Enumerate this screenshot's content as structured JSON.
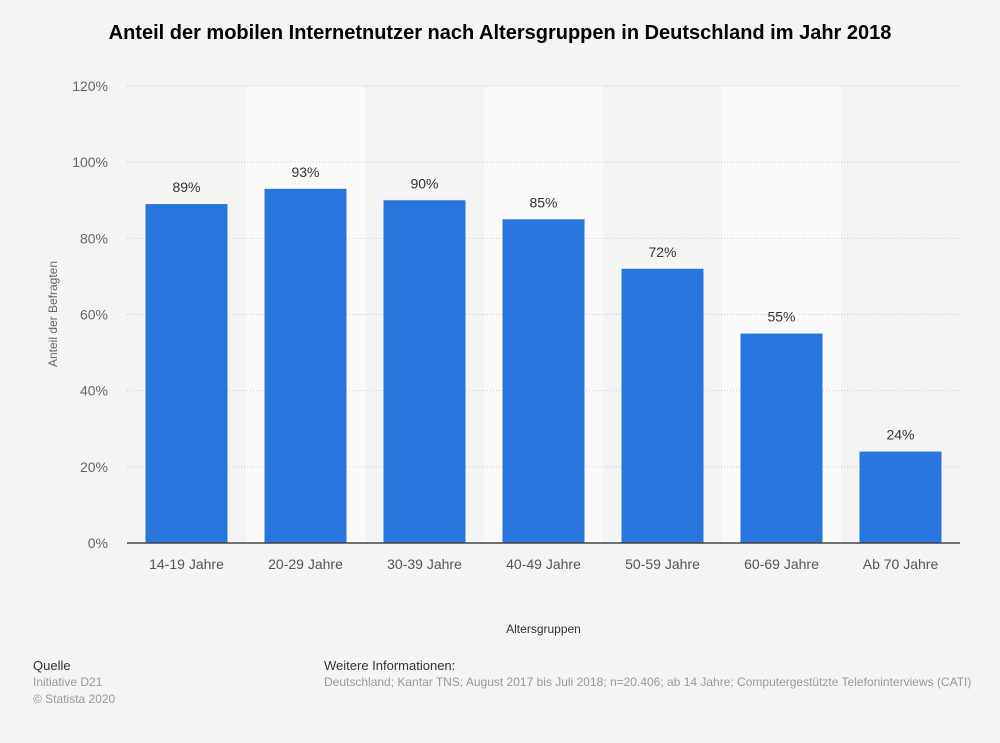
{
  "chart_data": {
    "type": "bar",
    "title": "Anteil der mobilen Internetnutzer nach Altersgruppen in Deutschland im Jahr 2018",
    "xlabel": "Altersgruppen",
    "ylabel": "Anteil der Befragten",
    "categories": [
      "14-19 Jahre",
      "20-29 Jahre",
      "30-39 Jahre",
      "40-49 Jahre",
      "50-59 Jahre",
      "60-69 Jahre",
      "Ab 70 Jahre"
    ],
    "values": [
      89,
      93,
      90,
      85,
      72,
      55,
      24
    ],
    "data_labels": [
      "89%",
      "93%",
      "90%",
      "85%",
      "72%",
      "55%",
      "24%"
    ],
    "ylim": [
      0,
      120
    ],
    "yticks": [
      "0%",
      "20%",
      "40%",
      "60%",
      "80%",
      "100%",
      "120%"
    ],
    "grid": true,
    "bar_color": "#2876dd"
  },
  "footer": {
    "source_heading": "Quelle",
    "source": "Initiative D21",
    "copyright": "© Statista 2020",
    "info_heading": "Weitere Informationen:",
    "info": "Deutschland; Kantar TNS; August 2017 bis Juli 2018; n=20.406; ab 14 Jahre; Computergestützte Telefoninterviews (CATI)"
  }
}
